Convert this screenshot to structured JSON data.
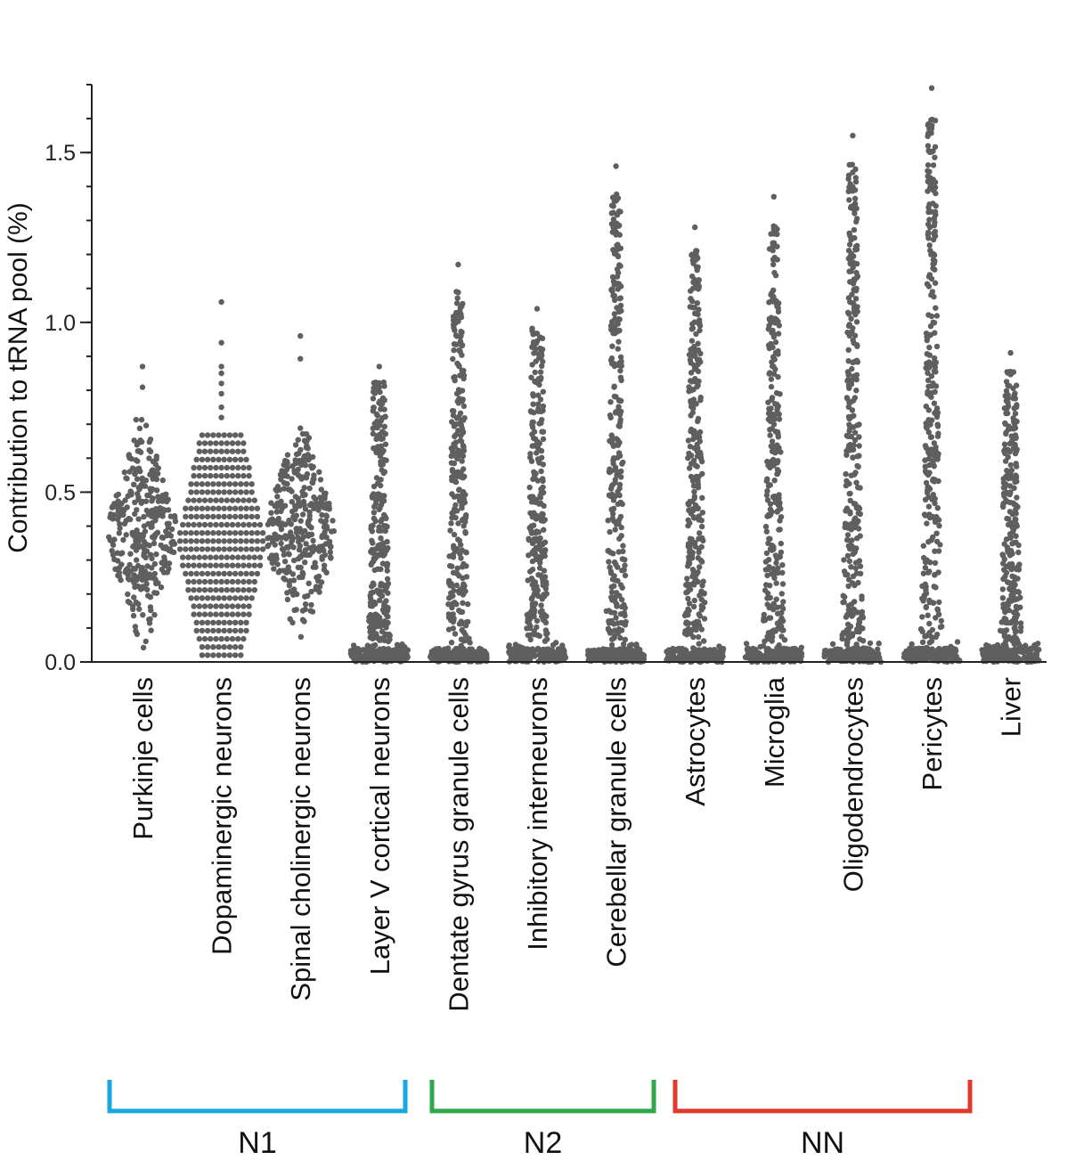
{
  "chart_data": {
    "type": "scatter",
    "subtype": "beeswarm",
    "title": "",
    "xlabel": "",
    "ylabel": "Contribution to tRNA pool (%)",
    "ylim": [
      0.0,
      1.7
    ],
    "yticks": [
      {
        "value": 0.0,
        "label": "0.0"
      },
      {
        "value": 0.5,
        "label": "0.5"
      },
      {
        "value": 1.0,
        "label": "1.0"
      },
      {
        "value": 1.5,
        "label": "1.5"
      }
    ],
    "y_minor_step": 0.1,
    "grid": false,
    "legend": "none",
    "dot_color": "#5f5f5f",
    "categories": [
      "Purkinje cells",
      "Dopaminergic neurons",
      "Spinal cholinergic neurons",
      "Layer V cortical neurons",
      "Dentate gyrus granule cells",
      "Inhibitory interneurons",
      "Cerebellar granule cells",
      "Astrocytes",
      "Microglia",
      "Oligodendrocytes",
      "Pericytes",
      "Liver"
    ],
    "series_max": [
      0.87,
      1.06,
      0.96,
      0.87,
      1.17,
      1.04,
      1.46,
      1.28,
      1.37,
      1.55,
      1.69,
      0.91
    ],
    "distribution": [
      "broad",
      "quantized",
      "broad",
      "skewed",
      "skewed",
      "skewed",
      "skewed",
      "skewed",
      "skewed",
      "skewed",
      "skewed",
      "skewed"
    ],
    "groups": [
      {
        "label": "N1",
        "from": 0,
        "to": 3,
        "color": "#1aa7e0"
      },
      {
        "label": "N2",
        "from": 4,
        "to": 6,
        "color": "#2ea84a"
      },
      {
        "label": "NN",
        "from": 7,
        "to": 10,
        "color": "#e03a2e"
      }
    ]
  }
}
